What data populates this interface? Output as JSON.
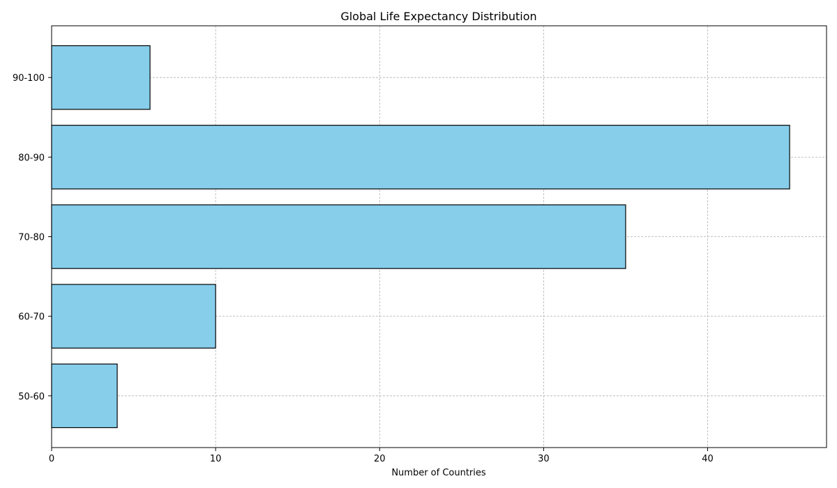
{
  "chart_data": {
    "type": "bar",
    "orientation": "horizontal",
    "title": "Global Life Expectancy Distribution",
    "xlabel": "Number of Countries",
    "ylabel": "",
    "categories": [
      "50-60",
      "60-70",
      "70-80",
      "80-90",
      "90-100"
    ],
    "values": [
      4,
      10,
      35,
      45,
      6
    ],
    "xlim": [
      0,
      47.25
    ],
    "xticks": [
      0,
      10,
      20,
      30,
      40
    ],
    "grid": true,
    "bar_color": "#87ceeb",
    "edge_color": "#000000"
  }
}
